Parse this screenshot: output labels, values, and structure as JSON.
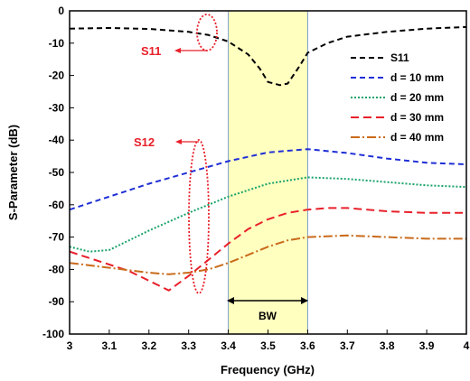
{
  "chart_data": {
    "type": "line",
    "title": "",
    "xlabel": "Frequency (GHz)",
    "ylabel": "S-Parameter (dB)",
    "xlim": [
      3,
      4
    ],
    "ylim": [
      -100,
      0
    ],
    "xticks": [
      3,
      3.1,
      3.2,
      3.3,
      3.4,
      3.5,
      3.6,
      3.7,
      3.8,
      3.9,
      4
    ],
    "yticks": [
      0,
      -10,
      -20,
      -30,
      -40,
      -50,
      -60,
      -70,
      -80,
      -90,
      -100
    ],
    "grid": false,
    "legend_position": "top-right",
    "band": {
      "label": "BW",
      "x_range": [
        3.4,
        3.6
      ],
      "color": "#ffffc0"
    },
    "series": [
      {
        "name": "S11",
        "color": "#000000",
        "dash": "6,4",
        "x": [
          3.0,
          3.1,
          3.2,
          3.3,
          3.35,
          3.4,
          3.45,
          3.48,
          3.5,
          3.53,
          3.55,
          3.58,
          3.6,
          3.65,
          3.7,
          3.8,
          3.9,
          4.0
        ],
        "y": [
          -5.5,
          -5.3,
          -5.6,
          -6.5,
          -7.5,
          -9.5,
          -13.5,
          -18,
          -22,
          -23,
          -22.5,
          -17,
          -13,
          -10,
          -8,
          -6.5,
          -5.5,
          -5
        ]
      },
      {
        "name": "d = 10 mm",
        "color": "#1f2fd6",
        "dash": "6,4",
        "x": [
          3.0,
          3.1,
          3.2,
          3.3,
          3.4,
          3.5,
          3.6,
          3.7,
          3.8,
          3.9,
          4.0
        ],
        "y": [
          -61.5,
          -57.5,
          -53.5,
          -50,
          -46.5,
          -43.8,
          -42.8,
          -44,
          -45.7,
          -47,
          -47.5
        ]
      },
      {
        "name": "d = 20 mm",
        "color": "#1aa36a",
        "dash": "2,2",
        "x": [
          3.0,
          3.05,
          3.1,
          3.15,
          3.2,
          3.3,
          3.4,
          3.5,
          3.6,
          3.7,
          3.8,
          3.9,
          4.0
        ],
        "y": [
          -73,
          -74.5,
          -74,
          -71,
          -68,
          -62.5,
          -57.5,
          -53.5,
          -51.5,
          -52,
          -53,
          -54,
          -54.5
        ]
      },
      {
        "name": "d = 30 mm",
        "color": "#e8202a",
        "dash": "9,5",
        "x": [
          3.0,
          3.1,
          3.15,
          3.2,
          3.25,
          3.3,
          3.35,
          3.4,
          3.45,
          3.5,
          3.55,
          3.6,
          3.65,
          3.7,
          3.8,
          3.9,
          4.0
        ],
        "y": [
          -74.5,
          -78.5,
          -80.5,
          -83.5,
          -86.5,
          -82,
          -77,
          -72,
          -67.5,
          -64.5,
          -62.5,
          -61.5,
          -61,
          -61,
          -62,
          -62.5,
          -62.5
        ]
      },
      {
        "name": "d = 40 mm",
        "color": "#c96a1a",
        "dash": "10,3,2,3",
        "x": [
          3.0,
          3.1,
          3.2,
          3.25,
          3.3,
          3.35,
          3.4,
          3.45,
          3.5,
          3.55,
          3.6,
          3.7,
          3.8,
          3.9,
          4.0
        ],
        "y": [
          -78,
          -79.5,
          -81,
          -81.5,
          -81,
          -80,
          -78,
          -75.5,
          -73,
          -71,
          -70,
          -69.5,
          -70,
          -70.5,
          -70.5
        ]
      }
    ],
    "annotations": [
      {
        "text": "S11",
        "color": "#e8202a"
      },
      {
        "text": "S12",
        "color": "#e8202a"
      }
    ]
  }
}
